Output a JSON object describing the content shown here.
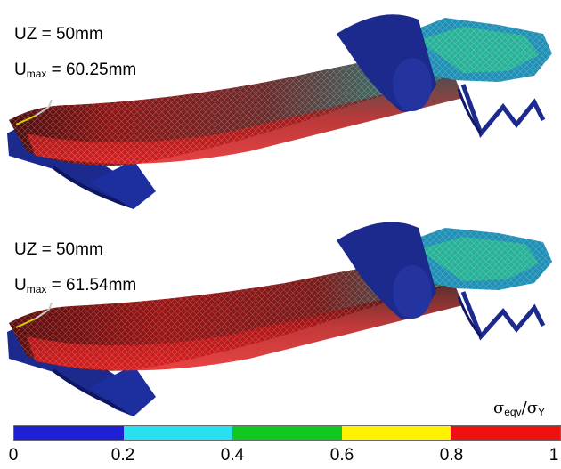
{
  "panels": [
    {
      "uz_label": "UZ = 50mm",
      "umax_main": "U",
      "umax_sub": "max",
      "umax_value": " = 60.25mm"
    },
    {
      "uz_label": "UZ = 50mm",
      "umax_main": "U",
      "umax_sub": "max",
      "umax_value": " = 61.54mm"
    }
  ],
  "legend": {
    "title_sigma1": "σ",
    "title_sub1": "eqv",
    "title_slash": "/",
    "title_sigma2": "σ",
    "title_sub2": "Y",
    "colors": [
      "#1f1fd6",
      "#29e0f0",
      "#10c820",
      "#fff200",
      "#ee1111"
    ],
    "ticks": [
      "0",
      "0.2",
      "0.4",
      "0.6",
      "0.8",
      "1"
    ]
  },
  "model": {
    "base_color": "#1a237e",
    "stress_colors": [
      "#1e3fa8",
      "#1fa6c8",
      "#2bbf3a",
      "#c9c20f",
      "#b01313",
      "#7a0c0c"
    ]
  }
}
